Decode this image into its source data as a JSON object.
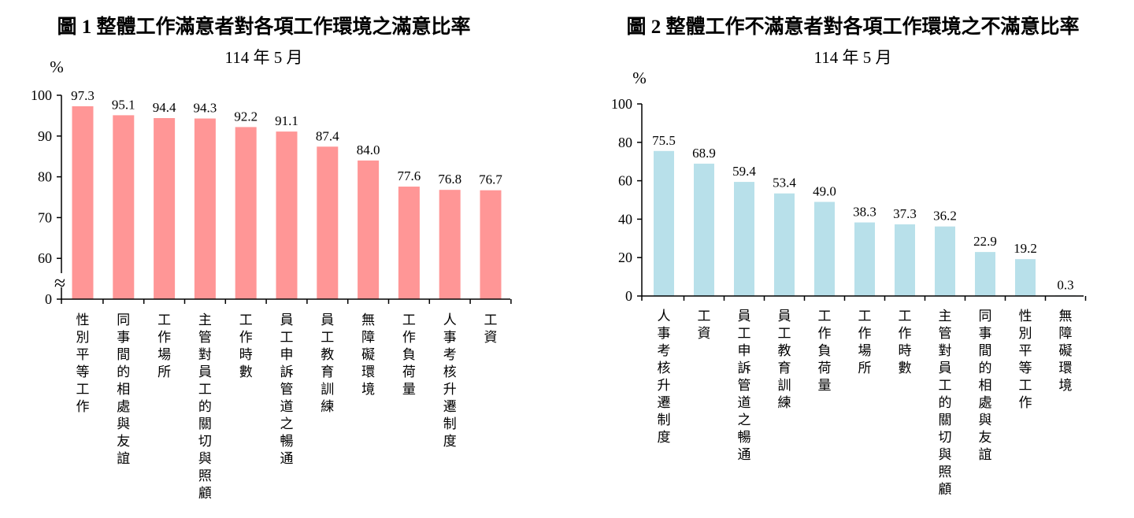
{
  "chart_data": [
    {
      "type": "bar",
      "title": "圖 1  整體工作滿意者對各項工作環境之滿意比率",
      "subtitle": "114 年 5 月",
      "ylabel": "%",
      "ylim": [
        50,
        100
      ],
      "axis_break": true,
      "yticks": [
        "100",
        "90",
        "80",
        "70",
        "60",
        "0"
      ],
      "color": "#ff9696",
      "categories": [
        "性別平等工作",
        "同事間的相處與友誼",
        "工作場所",
        "主管對員工的關切與照顧",
        "工作時數",
        "員工申訴管道之暢通",
        "員工教育訓練",
        "無障礙環境",
        "工作負荷量",
        "人事考核升遷制度",
        "工資"
      ],
      "values": [
        97.3,
        95.1,
        94.4,
        94.3,
        92.2,
        91.1,
        87.4,
        84.0,
        77.6,
        76.8,
        76.7
      ],
      "labels": [
        "97.3",
        "95.1",
        "94.4",
        "94.3",
        "92.2",
        "91.1",
        "87.4",
        "84.0",
        "77.6",
        "76.8",
        "76.7"
      ]
    },
    {
      "type": "bar",
      "title": "圖 2  整體工作不滿意者對各項工作環境之不滿意比率",
      "subtitle": "114 年 5 月",
      "ylabel": "%",
      "ylim": [
        0,
        100
      ],
      "yticks": [
        "100",
        "80",
        "60",
        "40",
        "20",
        "0"
      ],
      "color": "#b8e0ea",
      "categories": [
        "人事考核升遷制度",
        "工資",
        "員工申訴管道之暢通",
        "員工教育訓練",
        "工作負荷量",
        "工作場所",
        "工作時數",
        "主管對員工的關切與照顧",
        "同事間的相處與友誼",
        "性別平等工作",
        "無障礙環境"
      ],
      "values": [
        75.5,
        68.9,
        59.4,
        53.4,
        49.0,
        38.3,
        37.3,
        36.2,
        22.9,
        19.2,
        0.3
      ],
      "labels": [
        "75.5",
        "68.9",
        "59.4",
        "53.4",
        "49.0",
        "38.3",
        "37.3",
        "36.2",
        "22.9",
        "19.2",
        "0.3"
      ]
    }
  ]
}
